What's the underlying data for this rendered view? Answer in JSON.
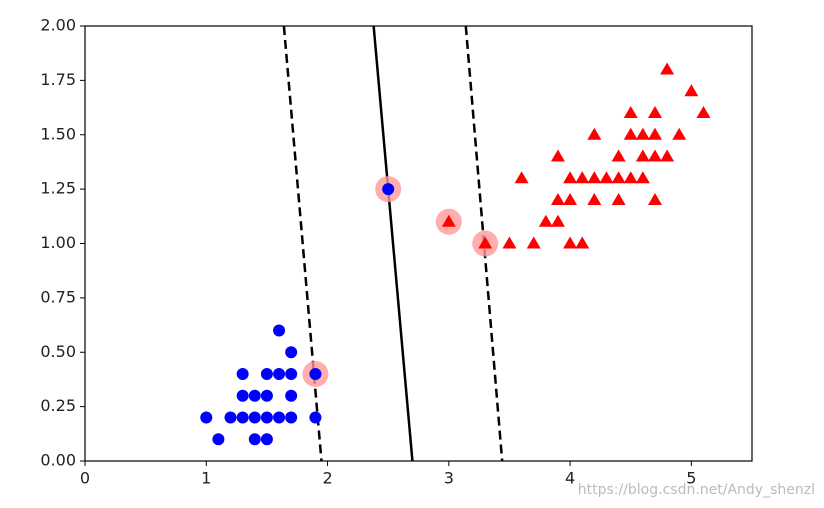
{
  "chart_data": {
    "type": "scatter",
    "xlim": [
      0,
      5.5
    ],
    "xticks": [
      0,
      1,
      2,
      3,
      4,
      5
    ],
    "ylim": [
      0,
      2
    ],
    "yticks": [
      {
        "value": 0,
        "label": "0.00"
      },
      {
        "value": 0.25,
        "label": "0.25"
      },
      {
        "value": 0.5,
        "label": "0.50"
      },
      {
        "value": 0.75,
        "label": "0.75"
      },
      {
        "value": 1,
        "label": "1.00"
      },
      {
        "value": 1.25,
        "label": "1.25"
      },
      {
        "value": 1.5,
        "label": "1.50"
      },
      {
        "value": 1.75,
        "label": "1.75"
      },
      {
        "value": 2,
        "label": "2.00"
      }
    ],
    "series": [
      {
        "color": "#0000ff",
        "marker": "circle",
        "x": [
          1.0,
          1.2,
          1.3,
          1.4,
          1.5,
          1.6,
          1.7,
          1.9,
          1.1,
          1.4,
          1.5,
          1.3,
          1.4,
          1.5,
          1.7,
          1.3,
          1.5,
          1.6,
          1.7,
          1.9,
          1.7,
          1.6,
          2.5
        ],
        "y": [
          0.2,
          0.2,
          0.2,
          0.2,
          0.2,
          0.2,
          0.2,
          0.2,
          0.1,
          0.1,
          0.1,
          0.3,
          0.3,
          0.3,
          0.3,
          0.4,
          0.4,
          0.4,
          0.4,
          0.4,
          0.5,
          0.6,
          1.25
        ]
      },
      {
        "color": "#ff0000",
        "marker": "triangle",
        "x": [
          3.3,
          3.5,
          3.7,
          4.0,
          4.1,
          3.0,
          3.8,
          3.9,
          3.9,
          4.0,
          4.2,
          4.4,
          4.7,
          3.6,
          4.0,
          4.1,
          4.2,
          4.3,
          4.4,
          4.5,
          4.6,
          3.9,
          4.4,
          4.6,
          4.7,
          4.8,
          4.2,
          4.5,
          4.6,
          4.7,
          4.9,
          4.5,
          4.7,
          5.1,
          5.0,
          4.8
        ],
        "y": [
          1.0,
          1.0,
          1.0,
          1.0,
          1.0,
          1.1,
          1.1,
          1.1,
          1.2,
          1.2,
          1.2,
          1.2,
          1.2,
          1.3,
          1.3,
          1.3,
          1.3,
          1.3,
          1.3,
          1.3,
          1.3,
          1.4,
          1.4,
          1.4,
          1.4,
          1.4,
          1.5,
          1.5,
          1.5,
          1.5,
          1.5,
          1.6,
          1.6,
          1.6,
          1.7,
          1.8
        ]
      },
      {
        "color": "#ff9999",
        "marker": "ring",
        "x": [
          1.9,
          2.5,
          3.0,
          3.3
        ],
        "y": [
          0.4,
          1.25,
          1.1,
          1.0
        ]
      }
    ],
    "lines": [
      {
        "style": "dashed",
        "x": [
          1.64,
          1.95
        ],
        "y": [
          2,
          0
        ]
      },
      {
        "style": "solid",
        "x": [
          2.38,
          2.7
        ],
        "y": [
          2,
          0
        ]
      },
      {
        "style": "dashed",
        "x": [
          3.14,
          3.44
        ],
        "y": [
          2,
          0
        ]
      }
    ],
    "watermark": "https://blog.csdn.net/Andy_shenzl"
  }
}
